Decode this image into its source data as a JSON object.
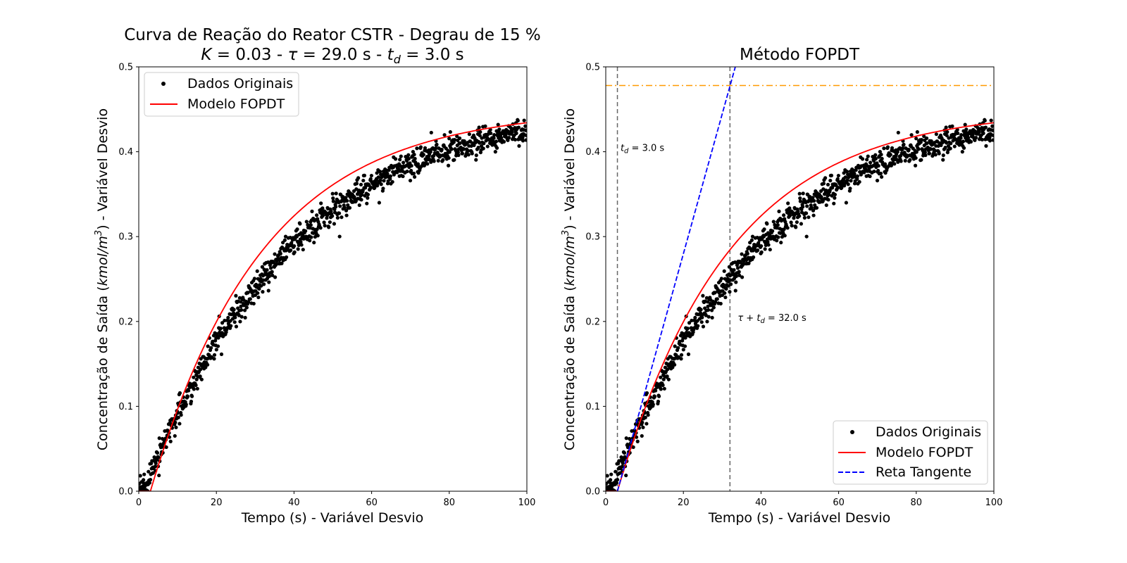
{
  "chart_data": [
    {
      "type": "scatter",
      "title_line1": "Curva de Reação do Reator CSTR - Degrau de 15 %",
      "title_line2": {
        "k_sym": "K",
        "k_val": " = 0.03 - ",
        "tau_sym": "τ",
        "tau_val": " = 29.0 s - ",
        "td_sym": "t",
        "td_sub": "d",
        "td_val": " = 3.0 s"
      },
      "xlabel": "Tempo (s) - Variável Desvio",
      "ylabel": {
        "pre": "Concentração de Saída (",
        "unit": "kmol/m",
        "sup": "3",
        "post": ") - Variável Desvio"
      },
      "xlim": [
        0,
        100
      ],
      "ylim": [
        0,
        0.5
      ],
      "xticks": [
        "0",
        "20",
        "40",
        "60",
        "80",
        "100"
      ],
      "yticks": [
        "0.0",
        "0.1",
        "0.2",
        "0.3",
        "0.4",
        "0.5"
      ],
      "grid": false,
      "legend_position": "top-left",
      "series": [
        {
          "name": "Dados Originais",
          "kind": "scatter",
          "color": "#000000",
          "x_start": 0,
          "x_end": 100,
          "n_points": 1000,
          "noise_sd": 0.008
        },
        {
          "name": "Modelo FOPDT",
          "kind": "line",
          "color": "#ff0000",
          "model": {
            "K": 0.03,
            "step": 15,
            "tau": 29.0,
            "td": 3.0
          }
        }
      ]
    },
    {
      "type": "scatter",
      "title": "Método FOPDT",
      "xlabel": "Tempo (s) - Variável Desvio",
      "ylabel": {
        "pre": "Concentração de Saída (",
        "unit": "kmol/m",
        "sup": "3",
        "post": ") - Variável Desvio"
      },
      "xlim": [
        0,
        100
      ],
      "ylim": [
        0,
        0.5
      ],
      "xticks": [
        "0",
        "20",
        "40",
        "60",
        "80",
        "100"
      ],
      "yticks": [
        "0.0",
        "0.1",
        "0.2",
        "0.3",
        "0.4",
        "0.5"
      ],
      "grid": false,
      "legend_position": "bottom-right",
      "series": [
        {
          "name": "Dados Originais",
          "kind": "scatter",
          "color": "#000000"
        },
        {
          "name": "Modelo FOPDT",
          "kind": "line",
          "color": "#ff0000"
        },
        {
          "name": "Reta Tangente",
          "kind": "dashed-line",
          "color": "#0000ff",
          "x": [
            3.0,
            33.5
          ],
          "y": [
            0.0,
            0.502
          ]
        }
      ],
      "reference_lines": [
        {
          "orientation": "vertical",
          "x": 3.0,
          "color": "#666666",
          "style": "dashed"
        },
        {
          "orientation": "vertical",
          "x": 32.0,
          "color": "#666666",
          "style": "dashed"
        },
        {
          "orientation": "horizontal",
          "y": 0.478,
          "color": "#ff9900",
          "style": "dashdot"
        }
      ],
      "annotations": [
        {
          "x": 3.8,
          "y": 0.4,
          "sym": "t",
          "sub": "d",
          "text": " = 3.0 s"
        },
        {
          "x": 34.0,
          "y": 0.2,
          "sym": "τ",
          "text": " + ",
          "sym2": "t",
          "sub": "d",
          "text2": " = 32.0 s"
        }
      ]
    }
  ]
}
